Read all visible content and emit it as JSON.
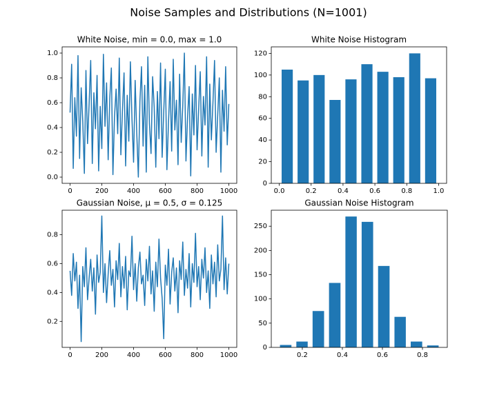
{
  "title": "Noise Samples and Distributions (N=1001)",
  "chart_data": [
    {
      "type": "line",
      "title": "White Noise, min = 0.0, max = 1.0",
      "x": [
        0,
        10,
        20,
        30,
        40,
        50,
        60,
        70,
        80,
        90,
        100,
        110,
        120,
        130,
        140,
        150,
        160,
        170,
        180,
        190,
        200,
        210,
        220,
        230,
        240,
        250,
        260,
        270,
        280,
        290,
        300,
        310,
        320,
        330,
        340,
        350,
        360,
        370,
        380,
        390,
        400,
        410,
        420,
        430,
        440,
        450,
        460,
        470,
        480,
        490,
        500,
        510,
        520,
        530,
        540,
        550,
        560,
        570,
        580,
        590,
        600,
        610,
        620,
        630,
        640,
        650,
        660,
        670,
        680,
        690,
        700,
        710,
        720,
        730,
        740,
        750,
        760,
        770,
        780,
        790,
        800,
        810,
        820,
        830,
        840,
        850,
        860,
        870,
        880,
        890,
        900,
        910,
        920,
        930,
        940,
        950,
        960,
        970,
        980,
        990,
        1000
      ],
      "series": [
        {
          "color": "#1f77b4",
          "values": [
            0.52,
            0.91,
            0.07,
            0.64,
            0.33,
            0.98,
            0.15,
            0.72,
            0.45,
            0.03,
            0.86,
            0.27,
            0.59,
            0.94,
            0.11,
            0.68,
            0.39,
            0.82,
            0.05,
            0.57,
            0.23,
            0.99,
            0.41,
            0.76,
            0.14,
            0.63,
            0.88,
            0.02,
            0.49,
            0.71,
            0.35,
            0.96,
            0.18,
            0.54,
            0.84,
            0.09,
            0.66,
            0.29,
            0.93,
            0.47,
            0.12,
            0.78,
            0.36,
            0.0,
            0.61,
            0.89,
            0.25,
            0.74,
            0.04,
            0.97,
            0.43,
            0.19,
            0.81,
            0.56,
            0.08,
            0.69,
            0.31,
            0.92,
            0.16,
            0.53,
            0.87,
            0.06,
            0.44,
            0.77,
            0.21,
            0.95,
            0.38,
            0.62,
            0.1,
            0.83,
            0.28,
            0.58,
            1.0,
            0.13,
            0.48,
            0.73,
            0.01,
            0.67,
            0.34,
            0.9,
            0.22,
            0.55,
            0.85,
            0.17,
            0.65,
            0.42,
            0.97,
            0.08,
            0.75,
            0.3,
            0.6,
            0.94,
            0.2,
            0.5,
            0.8,
            0.04,
            0.7,
            0.37,
            0.89,
            0.26,
            0.59
          ]
        }
      ],
      "xlim": [
        -50,
        1050
      ],
      "xticks": [
        0,
        200,
        400,
        600,
        800,
        1000
      ],
      "ylim": [
        -0.05,
        1.05
      ],
      "yticks": [
        {
          "value": 0,
          "label": "0.0"
        },
        0.2,
        0.4,
        0.6,
        0.8,
        {
          "value": 1,
          "label": "1.0"
        }
      ]
    },
    {
      "type": "histogram",
      "title": "White Noise Histogram",
      "bins": [
        0,
        0.1,
        0.2,
        0.3,
        0.4,
        0.5,
        0.6,
        0.7,
        0.8,
        0.9,
        1.0
      ],
      "values": [
        105,
        95,
        100,
        77,
        96,
        110,
        103,
        98,
        120,
        97
      ],
      "color": "#1f77b4",
      "xlim": [
        -0.05,
        1.05
      ],
      "xticks": [
        {
          "value": 0,
          "label": "0.0"
        },
        0.2,
        0.4,
        0.6,
        0.8,
        {
          "value": 1,
          "label": "1.0"
        }
      ],
      "ylim": [
        0,
        126
      ],
      "yticks": [
        0,
        20,
        40,
        60,
        80,
        100,
        120
      ]
    },
    {
      "type": "line",
      "title": "Gaussian Noise, μ = 0.5, σ = 0.125",
      "x": [
        0,
        10,
        20,
        30,
        40,
        50,
        60,
        70,
        80,
        90,
        100,
        110,
        120,
        130,
        140,
        150,
        160,
        170,
        180,
        190,
        200,
        210,
        220,
        230,
        240,
        250,
        260,
        270,
        280,
        290,
        300,
        310,
        320,
        330,
        340,
        350,
        360,
        370,
        380,
        390,
        400,
        410,
        420,
        430,
        440,
        450,
        460,
        470,
        480,
        490,
        500,
        510,
        520,
        530,
        540,
        550,
        560,
        570,
        580,
        590,
        600,
        610,
        620,
        630,
        640,
        650,
        660,
        670,
        680,
        690,
        700,
        710,
        720,
        730,
        740,
        750,
        760,
        770,
        780,
        790,
        800,
        810,
        820,
        830,
        840,
        850,
        860,
        870,
        880,
        890,
        900,
        910,
        920,
        930,
        940,
        950,
        960,
        970,
        980,
        990,
        1000
      ],
      "series": [
        {
          "color": "#1f77b4",
          "values": [
            0.55,
            0.38,
            0.67,
            0.48,
            0.61,
            0.29,
            0.52,
            0.06,
            0.58,
            0.44,
            0.71,
            0.35,
            0.5,
            0.63,
            0.41,
            0.57,
            0.25,
            0.66,
            0.47,
            0.54,
            0.93,
            0.4,
            0.6,
            0.33,
            0.53,
            0.69,
            0.45,
            0.56,
            0.3,
            0.62,
            0.49,
            0.74,
            0.37,
            0.58,
            0.43,
            0.65,
            0.28,
            0.55,
            0.51,
            0.79,
            0.42,
            0.6,
            0.34,
            0.57,
            0.68,
            0.46,
            0.52,
            0.31,
            0.63,
            0.48,
            0.72,
            0.39,
            0.55,
            0.27,
            0.61,
            0.44,
            0.77,
            0.5,
            0.36,
            0.08,
            0.59,
            0.45,
            0.7,
            0.32,
            0.54,
            0.64,
            0.41,
            0.57,
            0.26,
            0.62,
            0.49,
            0.75,
            0.38,
            0.56,
            0.43,
            0.67,
            0.3,
            0.6,
            0.47,
            0.81,
            0.44,
            0.58,
            0.35,
            0.63,
            0.5,
            0.71,
            0.4,
            0.55,
            0.29,
            0.66,
            0.46,
            0.61,
            0.37,
            0.73,
            0.48,
            0.56,
            0.93,
            0.42,
            0.64,
            0.39,
            0.6
          ]
        }
      ],
      "xlim": [
        -50,
        1050
      ],
      "xticks": [
        0,
        200,
        400,
        600,
        800,
        1000
      ],
      "ylim": [
        0.02,
        0.97
      ],
      "yticks": [
        0.2,
        0.4,
        0.6,
        0.8
      ]
    },
    {
      "type": "histogram",
      "title": "Gaussian Noise Histogram",
      "bins": [
        0.076,
        0.158,
        0.239,
        0.321,
        0.403,
        0.484,
        0.566,
        0.648,
        0.729,
        0.811,
        0.893
      ],
      "values": [
        5,
        12,
        75,
        133,
        270,
        259,
        168,
        63,
        12,
        4
      ],
      "color": "#1f77b4",
      "xlim": [
        0.045,
        0.924
      ],
      "xticks": [
        0.2,
        0.4,
        0.6,
        0.8
      ],
      "ylim": [
        0,
        283
      ],
      "yticks": [
        0,
        50,
        100,
        150,
        200,
        250
      ]
    }
  ]
}
